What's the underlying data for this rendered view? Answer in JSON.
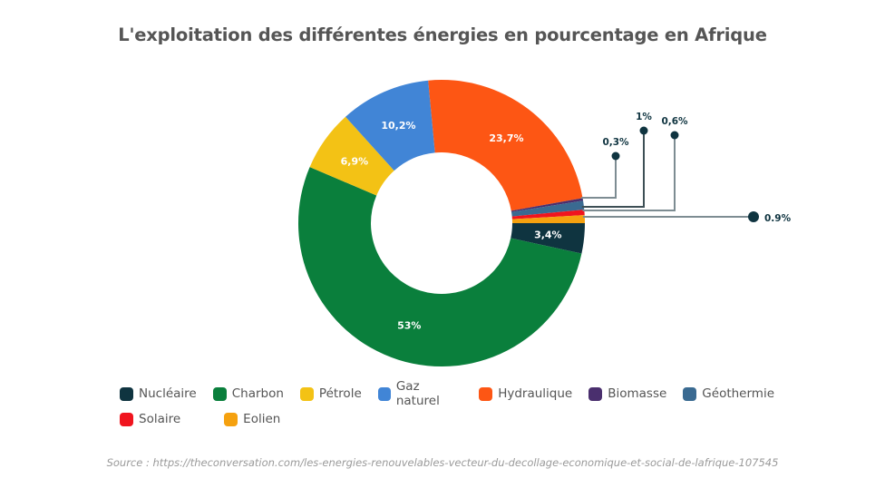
{
  "chart_data": {
    "type": "pie",
    "variant": "donut",
    "title": "L'exploitation des différentes énergies en pourcentage en Afrique",
    "start_category": "Hydraulique",
    "slices": [
      {
        "name": "Hydraulique",
        "value": 23.7,
        "label": "23,7%",
        "color": "#fd5614",
        "label_mode": "inside"
      },
      {
        "name": "Biomasse",
        "value": 0.3,
        "label": "0,3%",
        "color": "#4a2f6e",
        "label_mode": "callout"
      },
      {
        "name": "Géothermie",
        "value": 1.0,
        "label": "1%",
        "color": "#3a6a91",
        "label_mode": "callout"
      },
      {
        "name": "Solaire",
        "value": 0.6,
        "label": "0,6%",
        "color": "#f0141e",
        "label_mode": "callout"
      },
      {
        "name": "Eolien",
        "value": 0.9,
        "label": "0.9%",
        "color": "#f5a10f",
        "label_mode": "callout"
      },
      {
        "name": "Nucléaire",
        "value": 3.4,
        "label": "3,4%",
        "color": "#0f3440",
        "label_mode": "inside"
      },
      {
        "name": "Charbon",
        "value": 53,
        "label": "53%",
        "color": "#0a7f3c",
        "label_mode": "inside"
      },
      {
        "name": "Pétrole",
        "value": 6.9,
        "label": "6,9%",
        "color": "#f3c215",
        "label_mode": "inside"
      },
      {
        "name": "Gaz naturel",
        "value": 10.2,
        "label": "10,2%",
        "color": "#4185d6",
        "label_mode": "inside"
      }
    ],
    "legend": {
      "placement": "bottom",
      "rows": [
        [
          "Nucléaire",
          "Charbon",
          "Pétrole",
          "Gaz naturel",
          "Hydraulique",
          "Biomasse",
          "Géothermie"
        ],
        [
          "Solaire",
          "Eolien"
        ]
      ]
    }
  },
  "colors": {
    "title": "#555555",
    "callout_dot": "#0f3440",
    "callout_line_light": "#7d8c92",
    "callout_line_dark": "#3d4f55"
  },
  "source": "Source : https://theconversation.com/les-energies-renouvelables-vecteur-du-decollage-economique-et-social-de-lafrique-107545"
}
